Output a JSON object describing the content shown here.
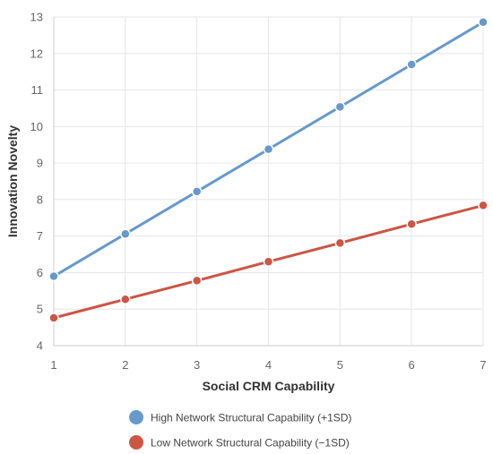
{
  "chart_data": {
    "type": "line",
    "title": "",
    "xlabel": "Social CRM Capability",
    "ylabel": "Innovation Novelty",
    "x": [
      1,
      2,
      3,
      4,
      5,
      6,
      7
    ],
    "xlim": [
      1,
      7
    ],
    "ylim": [
      4,
      13
    ],
    "xticks": [
      "1",
      "2",
      "3",
      "4",
      "5",
      "6",
      "7"
    ],
    "yticks": [
      "4",
      "5",
      "6",
      "7",
      "8",
      "9",
      "10",
      "11",
      "12",
      "13"
    ],
    "grid": true,
    "legend_position": "bottom",
    "series": [
      {
        "name": "High Network Structural Capability (+1SD)",
        "color": "#6699cc",
        "values": [
          5.9,
          7.06,
          8.22,
          9.38,
          10.54,
          11.7,
          12.86
        ]
      },
      {
        "name": "Low Network Structural Capability (−1SD)",
        "color": "#cc5544",
        "values": [
          4.76,
          5.27,
          5.78,
          6.3,
          6.81,
          7.33,
          7.84
        ]
      }
    ]
  }
}
